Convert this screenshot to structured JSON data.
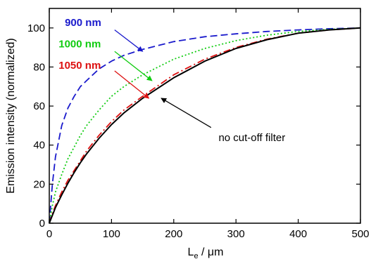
{
  "chart_data": {
    "type": "line",
    "title": "",
    "xlabel": {
      "main": "L",
      "sub": "e",
      "rest": " / μm"
    },
    "ylabel": "Emission intensity (normalized)",
    "xlim": [
      0,
      500
    ],
    "ylim": [
      0,
      110
    ],
    "xticks": [
      0,
      100,
      200,
      300,
      400,
      500
    ],
    "yticks": [
      0,
      20,
      40,
      60,
      80,
      100
    ],
    "grid": false,
    "x": [
      0,
      5,
      10,
      20,
      30,
      40,
      50,
      60,
      80,
      100,
      120,
      150,
      200,
      250,
      300,
      350,
      400,
      450,
      500
    ],
    "series": [
      {
        "name": "900 nm",
        "color": "#1a1acc",
        "dash": "dashed",
        "values": [
          0,
          20,
          34,
          50,
          59,
          65,
          70,
          73,
          79,
          83,
          86,
          89,
          93,
          95.5,
          97,
          98.2,
          99,
          99.6,
          100
        ]
      },
      {
        "name": "1000 nm",
        "color": "#11cc11",
        "dash": "dotted",
        "values": [
          0,
          9,
          16,
          25,
          33,
          39,
          45,
          50,
          58,
          65,
          70,
          76,
          84,
          89.5,
          93.5,
          96.3,
          98.2,
          99.3,
          100
        ]
      },
      {
        "name": "1050 nm",
        "color": "#dd1111",
        "dash": "dashdot",
        "values": [
          0,
          5,
          9,
          16,
          22,
          27,
          32,
          37,
          45,
          52,
          58,
          65,
          76,
          84,
          90,
          94.3,
          97.3,
          99,
          100
        ]
      },
      {
        "name": "no cut-off filter",
        "color": "#000000",
        "dash": "solid",
        "values": [
          0,
          4,
          8,
          14.5,
          20.5,
          26,
          31,
          35.5,
          43.5,
          50.5,
          56.5,
          64,
          74.5,
          83,
          89.5,
          94,
          97.3,
          99,
          100
        ]
      }
    ],
    "annotations": [
      {
        "text": "900 nm",
        "color": "#1a1acc",
        "label_at": [
          25,
          101
        ],
        "arrow_from": [
          105,
          99
        ],
        "arrow_to": [
          150,
          88
        ]
      },
      {
        "text": "1000 nm",
        "color": "#11cc11",
        "label_at": [
          15,
          90
        ],
        "arrow_from": [
          105,
          88
        ],
        "arrow_to": [
          165,
          73
        ]
      },
      {
        "text": "1050 nm",
        "color": "#dd1111",
        "label_at": [
          15,
          79
        ],
        "arrow_from": [
          105,
          78
        ],
        "arrow_to": [
          160,
          64
        ]
      },
      {
        "text": "no cut-off filter",
        "color": "#000000",
        "label_at": [
          272,
          42
        ],
        "arrow_from": [
          260,
          49
        ],
        "arrow_to": [
          180,
          64
        ]
      }
    ]
  }
}
